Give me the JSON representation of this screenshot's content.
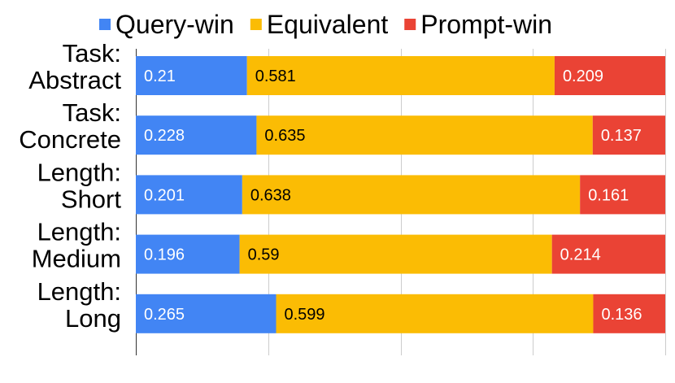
{
  "chart_data": {
    "type": "bar",
    "orientation": "horizontal",
    "stacked": true,
    "title": "",
    "xlabel": "",
    "ylabel": "",
    "xlim": [
      0,
      1
    ],
    "grid": true,
    "legend_position": "top",
    "categories": [
      [
        "Task:",
        "Abstract"
      ],
      [
        "Task:",
        "Concrete"
      ],
      [
        "Length:",
        "Short"
      ],
      [
        "Length:",
        "Medium"
      ],
      [
        "Length:",
        "Long"
      ]
    ],
    "series": [
      {
        "name": "Query-win",
        "color": "#4285f4",
        "label_color": "#ffffff",
        "values": [
          0.21,
          0.228,
          0.201,
          0.196,
          0.265
        ],
        "labels": [
          "0.21",
          "0.228",
          "0.201",
          "0.196",
          "0.265"
        ]
      },
      {
        "name": "Equivalent",
        "color": "#fbbc04",
        "label_color": "#000000",
        "values": [
          0.581,
          0.635,
          0.638,
          0.59,
          0.599
        ],
        "labels": [
          "0.581",
          "0.635",
          "0.638",
          "0.59",
          "0.599"
        ]
      },
      {
        "name": "Prompt-win",
        "color": "#ea4335",
        "label_color": "#ffffff",
        "values": [
          0.209,
          0.137,
          0.161,
          0.214,
          0.136
        ],
        "labels": [
          "0.209",
          "0.137",
          "0.161",
          "0.214",
          "0.136"
        ]
      }
    ]
  }
}
